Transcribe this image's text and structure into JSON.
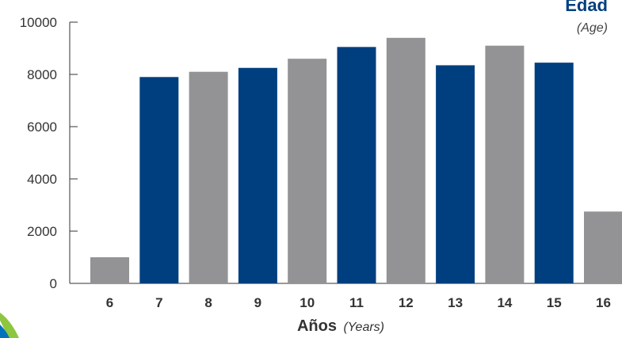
{
  "chart_data": {
    "type": "bar",
    "categories": [
      "6",
      "7",
      "8",
      "9",
      "10",
      "11",
      "12",
      "13",
      "14",
      "15",
      "16"
    ],
    "values": [
      1000,
      7900,
      8100,
      8250,
      8600,
      9050,
      9400,
      8350,
      9100,
      8450,
      2750
    ],
    "bar_colors": [
      "#939396",
      "#003f7f",
      "#939396",
      "#003f7f",
      "#939396",
      "#003f7f",
      "#939396",
      "#003f7f",
      "#939396",
      "#003f7f",
      "#939396"
    ],
    "ylim": [
      0,
      10000
    ],
    "yticks": [
      "0",
      "2000",
      "4000",
      "6000",
      "8000",
      "10000"
    ],
    "xlabel": "Años",
    "xlabel_sub": "(Years)",
    "corner_title": "Edad",
    "corner_subtitle": "(Age)",
    "grid": false,
    "colors": {
      "primary": "#003f7f",
      "secondary": "#939396",
      "accent_green": "#8dc63f",
      "accent_blue": "#0072bc"
    }
  }
}
